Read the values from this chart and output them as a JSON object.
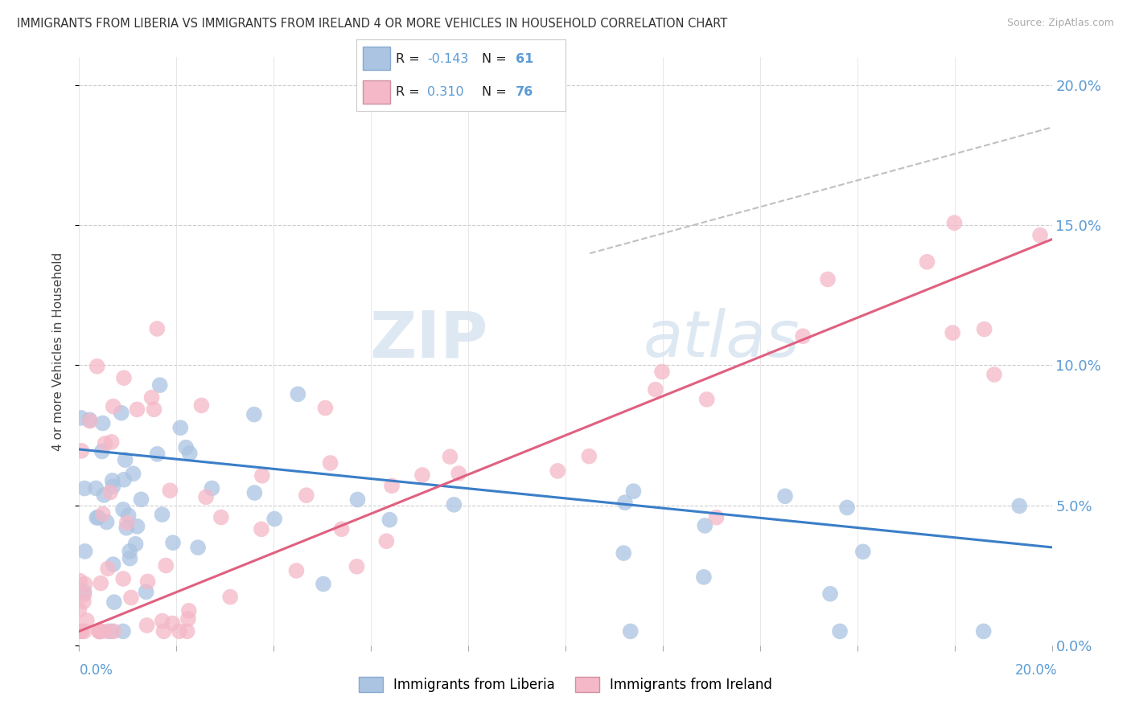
{
  "title": "IMMIGRANTS FROM LIBERIA VS IMMIGRANTS FROM IRELAND 4 OR MORE VEHICLES IN HOUSEHOLD CORRELATION CHART",
  "source": "Source: ZipAtlas.com",
  "ylabel": "4 or more Vehicles in Household",
  "ytick_vals": [
    0.0,
    5.0,
    10.0,
    15.0,
    20.0
  ],
  "xlim": [
    0.0,
    20.0
  ],
  "ylim": [
    0.0,
    21.0
  ],
  "liberia_color": "#aac4e2",
  "ireland_color": "#f4b8c8",
  "liberia_R": -0.143,
  "liberia_N": 61,
  "ireland_R": 0.31,
  "ireland_N": 76,
  "trend_liberia_color": "#3a7ec8",
  "trend_ireland_color": "#e06080",
  "trend_dashed_color": "#c0c0c0",
  "watermark_zip": "ZIP",
  "watermark_atlas": "atlas",
  "legend_label_liberia": "Immigrants from Liberia",
  "legend_label_ireland": "Immigrants from Ireland",
  "title_fontsize": 10.5,
  "axis_label_color": "#5b9bd5",
  "legend_R_value_color": "#5b9bd5",
  "legend_N_value_color": "#5b9bd5",
  "liberia_trend_intercept": 7.0,
  "liberia_trend_slope": -0.175,
  "ireland_trend_intercept": 0.5,
  "ireland_trend_slope": 0.7,
  "dashed_x_start": 10.5,
  "dashed_x_end": 20.0,
  "dashed_y_start": 14.0,
  "dashed_y_end": 18.5
}
